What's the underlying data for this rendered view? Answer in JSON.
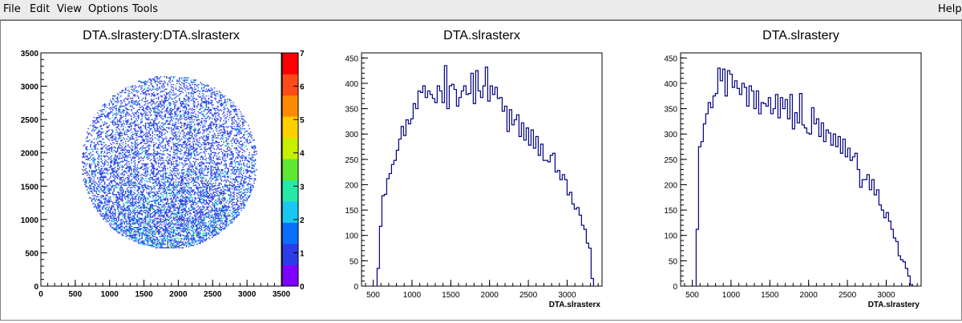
{
  "menu": {
    "file": "File",
    "edit": "Edit",
    "view": "View",
    "options": "Options",
    "tools": "Tools",
    "help": "Help"
  },
  "colors": {
    "histogram_line": "#000080",
    "frame": "#000000",
    "palette": [
      "#7f00ff",
      "#2b3ce8",
      "#0a6eff",
      "#19c7f0",
      "#26e8a8",
      "#5fe832",
      "#c7f000",
      "#ffd000",
      "#ff8a00",
      "#ff4a1a",
      "#ff0000"
    ]
  },
  "chart_data": [
    {
      "type": "heatmap",
      "title": "DTA.slrastery:DTA.slrasterx",
      "xlabel": "",
      "ylabel": "",
      "xlim": [
        0,
        3500
      ],
      "ylim": [
        0,
        3500
      ],
      "x_ticks": [
        "0",
        "500",
        "1000",
        "1500",
        "2000",
        "2500",
        "3000",
        "3500"
      ],
      "y_ticks": [
        "0",
        "500",
        "1000",
        "1500",
        "2000",
        "2500",
        "3000",
        "3500"
      ],
      "color_scale": {
        "min": 0,
        "max": 7,
        "ticks": [
          "0",
          "1",
          "2",
          "3",
          "4",
          "5",
          "6",
          "7"
        ]
      },
      "distribution": {
        "shape": "disk",
        "center": [
          1860,
          1850
        ],
        "radius_x": 1280,
        "radius_y": 1300,
        "typical_counts": [
          1,
          3
        ],
        "denser_region": "lower"
      }
    },
    {
      "type": "bar",
      "style": "step",
      "title": "DTA.slrasterx",
      "xlabel": "DTA.slrasterx",
      "ylabel": "",
      "xlim": [
        350,
        3450
      ],
      "ylim": [
        0,
        460
      ],
      "x_ticks": [
        "500",
        "1000",
        "1500",
        "2000",
        "2500",
        "3000"
      ],
      "y_ticks": [
        "0",
        "50",
        "100",
        "150",
        "200",
        "250",
        "300",
        "350",
        "400",
        "450"
      ],
      "bin_start": 550,
      "bin_width": 31,
      "values": [
        35,
        118,
        178,
        181,
        212,
        222,
        240,
        248,
        268,
        290,
        315,
        297,
        328,
        320,
        330,
        360,
        350,
        385,
        382,
        395,
        372,
        385,
        378,
        370,
        362,
        395,
        385,
        362,
        435,
        350,
        395,
        398,
        388,
        355,
        372,
        385,
        395,
        378,
        380,
        420,
        360,
        425,
        385,
        372,
        395,
        432,
        365,
        395,
        378,
        392,
        370,
        372,
        345,
        355,
        305,
        348,
        318,
        328,
        338,
        295,
        322,
        288,
        312,
        278,
        308,
        272,
        295,
        258,
        280,
        248,
        248,
        245,
        258,
        262,
        225,
        228,
        210,
        220,
        210,
        180,
        185,
        162,
        152,
        155,
        140,
        120,
        112,
        85,
        75,
        15
      ]
    },
    {
      "type": "bar",
      "style": "step",
      "title": "DTA.slrastery",
      "xlabel": "DTA.slrastery",
      "ylabel": "",
      "xlim": [
        350,
        3450
      ],
      "ylim": [
        0,
        460
      ],
      "x_ticks": [
        "500",
        "1000",
        "1500",
        "2000",
        "2500",
        "3000"
      ],
      "y_ticks": [
        "0",
        "50",
        "100",
        "150",
        "200",
        "250",
        "300",
        "350",
        "400",
        "450"
      ],
      "bin_start": 550,
      "bin_width": 31,
      "values": [
        112,
        275,
        285,
        320,
        340,
        362,
        352,
        375,
        380,
        430,
        405,
        428,
        375,
        425,
        418,
        392,
        405,
        390,
        378,
        400,
        392,
        355,
        395,
        385,
        350,
        385,
        340,
        362,
        360,
        355,
        372,
        340,
        350,
        378,
        332,
        372,
        350,
        368,
        330,
        378,
        310,
        342,
        322,
        380,
        318,
        312,
        302,
        300,
        352,
        320,
        330,
        295,
        322,
        285,
        308,
        302,
        278,
        300,
        275,
        295,
        262,
        290,
        255,
        272,
        248,
        255,
        262,
        230,
        195,
        210,
        210,
        220,
        190,
        210,
        180,
        190,
        160,
        150,
        135,
        145,
        128,
        112,
        95,
        88,
        60,
        52,
        48,
        35,
        20,
        3
      ]
    }
  ]
}
